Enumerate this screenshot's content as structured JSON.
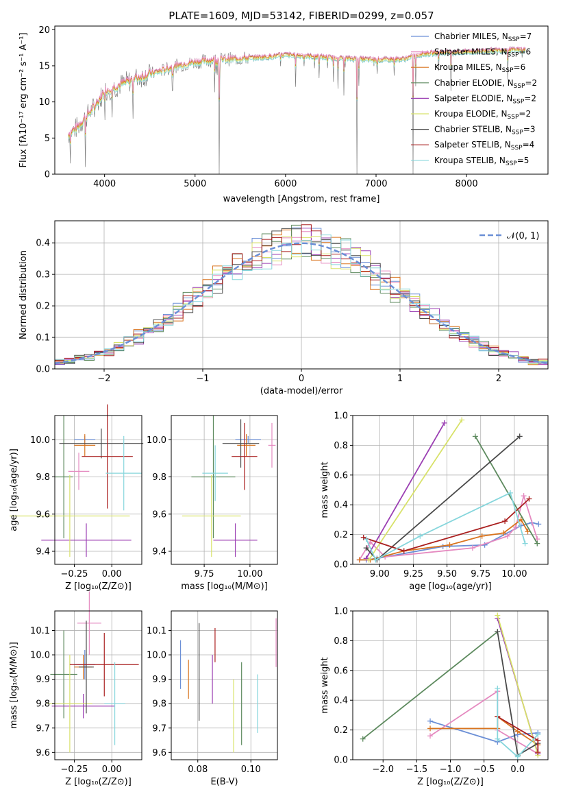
{
  "colors": {
    "c0": "#6b8fd6",
    "c1": "#e58ac0",
    "c2": "#d9741f",
    "c3": "#5d8a5e",
    "c4": "#9b3fb3",
    "c5": "#d8e26a",
    "c6": "#4a4a4a",
    "c7": "#aa1f1f",
    "c8": "#86d6dc",
    "data": "#808080",
    "grid": "#b0b0b0"
  },
  "chart_data": [
    {
      "id": "spectrum",
      "type": "line",
      "title": "PLATE=1609, MJD=53142, FIBERID=0299, z=0.057",
      "xlabel": "wavelength [Angstrom, rest frame]",
      "ylabel": "Flux [fλ10⁻¹⁷ erg cm⁻² s⁻¹ A⁻¹]",
      "xlim": [
        3450,
        8900
      ],
      "ylim": [
        0,
        20.5
      ],
      "xticks": [
        4000,
        5000,
        6000,
        7000,
        8000
      ],
      "yticks": [
        0,
        5,
        10,
        15,
        20
      ],
      "grid": false,
      "legend_position": "right",
      "series": [
        {
          "name": "Chabrier MILES, N_SSP=7"
        },
        {
          "name": "Salpeter MILES, N_SSP=6"
        },
        {
          "name": "Kroupa MILES, N_SSP=6"
        },
        {
          "name": "Chabrier ELODIE, N_SSP=2"
        },
        {
          "name": "Salpeter ELODIE, N_SSP=2"
        },
        {
          "name": "Kroupa ELODIE, N_SSP=2"
        },
        {
          "name": "Chabrier STELIB, N_SSP=3"
        },
        {
          "name": "Salpeter STELIB, N_SSP=4"
        },
        {
          "name": "Kroupa STELIB, N_SSP=5"
        }
      ],
      "legend_labels": [
        {
          "pre": "Chabrier MILES, N",
          "sub": "SSP",
          "post": "=7"
        },
        {
          "pre": "Salpeter MILES, N",
          "sub": "SSP",
          "post": "=6"
        },
        {
          "pre": "Kroupa MILES, N",
          "sub": "SSP",
          "post": "=6"
        },
        {
          "pre": "Chabrier ELODIE, N",
          "sub": "SSP",
          "post": "=2"
        },
        {
          "pre": "Salpeter ELODIE, N",
          "sub": "SSP",
          "post": "=2"
        },
        {
          "pre": "Kroupa ELODIE, N",
          "sub": "SSP",
          "post": "=2"
        },
        {
          "pre": "Chabrier STELIB, N",
          "sub": "SSP",
          "post": "=3"
        },
        {
          "pre": "Salpeter STELIB, N",
          "sub": "SSP",
          "post": "=4"
        },
        {
          "pre": "Kroupa STELIB, N",
          "sub": "SSP",
          "post": "=5"
        }
      ],
      "continuum": {
        "x": [
          3600,
          3700,
          3800,
          3900,
          4000,
          4100,
          4200,
          4400,
          4600,
          4800,
          5000,
          5200,
          5500,
          5800,
          6000,
          6300,
          6500,
          6700,
          7000,
          7300,
          7500,
          7700,
          8000,
          8300,
          8600
        ],
        "y": [
          5.5,
          6.5,
          8.0,
          9.5,
          11.5,
          12.0,
          12.5,
          13.5,
          14.2,
          15.0,
          15.5,
          15.8,
          16.0,
          16.2,
          16.5,
          16.3,
          16.1,
          16.0,
          15.8,
          15.9,
          16.6,
          16.8,
          16.9,
          17.1,
          17.2
        ]
      }
    },
    {
      "id": "residuals",
      "type": "bar",
      "xlabel": "(data-model)/error",
      "ylabel": "Normed distribution",
      "xlim": [
        -2.5,
        2.5
      ],
      "ylim": [
        0,
        0.47
      ],
      "xticks": [
        -2,
        -1,
        0,
        1,
        2
      ],
      "yticks": [
        0.0,
        0.1,
        0.2,
        0.3,
        0.4
      ],
      "grid": true,
      "legend_label": "𝒩(0, 1)",
      "legend_position": "top-right",
      "bin_width": 0.1
    },
    {
      "id": "z-age",
      "type": "scatter",
      "xlabel": "Z [log₁₀(Z/Z⊙)]",
      "ylabel": "age  [log₁₀(age/yr)]",
      "xlim": [
        -0.38,
        0.2
      ],
      "ylim": [
        9.33,
        10.13
      ],
      "xticks": [
        -0.25,
        0.0
      ],
      "yticks": [
        9.4,
        9.6,
        9.8,
        10.0
      ],
      "grid": true,
      "points": [
        {
          "x": -0.18,
          "y": 10.0,
          "xerr": 0.07,
          "yerr": 0.02
        },
        {
          "x": -0.22,
          "y": 9.83,
          "xerr": 0.07,
          "yerr": 0.1
        },
        {
          "x": -0.18,
          "y": 9.97,
          "xerr": 0.07,
          "yerr": 0.06
        },
        {
          "x": -0.32,
          "y": 9.8,
          "xerr": 0.06,
          "yerr": 0.33
        },
        {
          "x": -0.17,
          "y": 9.46,
          "xerr": 0.3,
          "yerr": 0.09
        },
        {
          "x": -0.28,
          "y": 9.59,
          "xerr": 0.4,
          "yerr": 0.22
        },
        {
          "x": -0.07,
          "y": 9.98,
          "xerr": 0.28,
          "yerr": 0.08
        },
        {
          "x": -0.03,
          "y": 9.91,
          "xerr": 0.17,
          "yerr": 0.28
        },
        {
          "x": 0.08,
          "y": 9.82,
          "xerr": 0.12,
          "yerr": 0.2
        }
      ]
    },
    {
      "id": "mass-age",
      "type": "scatter",
      "xlabel": "mass [log₁₀(M/M⊙)]",
      "ylabel": "",
      "xlim": [
        9.57,
        10.15
      ],
      "ylim": [
        9.33,
        10.13
      ],
      "xticks": [
        9.75,
        10.0
      ],
      "yticks": [
        9.4,
        9.6,
        9.8,
        10.0
      ],
      "grid": true,
      "points": [
        {
          "x": 9.99,
          "y": 10.0,
          "xerr": 0.07,
          "yerr": 0.02
        },
        {
          "x": 10.12,
          "y": 9.97,
          "xerr": 0.02,
          "yerr": 0.12
        },
        {
          "x": 9.98,
          "y": 9.97,
          "xerr": 0.05,
          "yerr": 0.06
        },
        {
          "x": 9.8,
          "y": 9.8,
          "xerr": 0.12,
          "yerr": 0.33
        },
        {
          "x": 9.92,
          "y": 9.46,
          "xerr": 0.12,
          "yerr": 0.09
        },
        {
          "x": 9.79,
          "y": 9.59,
          "xerr": 0.16,
          "yerr": 0.22
        },
        {
          "x": 9.95,
          "y": 9.98,
          "xerr": 0.1,
          "yerr": 0.13
        },
        {
          "x": 9.97,
          "y": 9.91,
          "xerr": 0.07,
          "yerr": 0.18
        },
        {
          "x": 9.81,
          "y": 9.82,
          "xerr": 0.07,
          "yerr": 0.15
        }
      ]
    },
    {
      "id": "age-weight",
      "type": "line",
      "xlabel": "age  [log₁₀(age/yr)]",
      "ylabel": "mass weight",
      "xlim": [
        8.8,
        10.25
      ],
      "ylim": [
        0,
        1
      ],
      "xticks": [
        9.0,
        9.25,
        9.5,
        9.75,
        10.0
      ],
      "yticks": [
        0.0,
        0.2,
        0.4,
        0.6,
        0.8,
        1.0
      ],
      "grid": true,
      "series": [
        {
          "x": [
            8.85,
            8.9,
            8.98,
            9.47,
            9.78,
            10.05,
            10.13,
            10.18
          ],
          "y": [
            0.03,
            0.03,
            0.04,
            0.12,
            0.13,
            0.26,
            0.28,
            0.27
          ]
        },
        {
          "x": [
            8.85,
            8.93,
            9.04,
            9.69,
            9.95,
            10.01,
            10.07,
            10.17
          ],
          "y": [
            0.03,
            0.15,
            0.05,
            0.11,
            0.19,
            0.25,
            0.46,
            0.17
          ]
        },
        {
          "x": [
            8.85,
            8.93,
            9.18,
            9.52,
            9.76,
            9.92,
            10.05,
            10.1
          ],
          "y": [
            0.03,
            0.03,
            0.09,
            0.13,
            0.19,
            0.21,
            0.3,
            0.22
          ]
        },
        {
          "x": [
            9.71,
            10.17
          ],
          "y": [
            0.86,
            0.14
          ]
        },
        {
          "x": [
            8.9,
            9.48
          ],
          "y": [
            0.04,
            0.95
          ]
        },
        {
          "x": [
            8.92,
            9.61
          ],
          "y": [
            0.03,
            0.97
          ]
        },
        {
          "x": [
            8.9,
            8.98,
            10.04
          ],
          "y": [
            0.11,
            0.03,
            0.86
          ]
        },
        {
          "x": [
            8.88,
            9.18,
            9.93,
            10.11
          ],
          "y": [
            0.18,
            0.09,
            0.29,
            0.44
          ]
        },
        {
          "x": [
            8.9,
            8.97,
            9.3,
            9.97,
            10.08
          ],
          "y": [
            0.17,
            0.03,
            0.19,
            0.48,
            0.14
          ]
        }
      ]
    },
    {
      "id": "z-mass",
      "type": "scatter",
      "xlabel": "Z [log₁₀(Z/Z⊙)]",
      "ylabel": "mass [log₁₀(M/M⊙)]",
      "xlim": [
        -0.38,
        0.2
      ],
      "ylim": [
        9.57,
        10.18
      ],
      "xticks": [
        -0.25,
        0.0
      ],
      "yticks": [
        9.6,
        9.7,
        9.8,
        9.9,
        10.0,
        10.1
      ],
      "grid": true,
      "points": [
        {
          "x": -0.18,
          "y": 9.96,
          "xerr": 0.07,
          "yerr": 0.06
        },
        {
          "x": -0.15,
          "y": 10.13,
          "xerr": 0.08,
          "yerr": 0.13
        },
        {
          "x": -0.19,
          "y": 9.95,
          "xerr": 0.06,
          "yerr": 0.05
        },
        {
          "x": -0.32,
          "y": 9.92,
          "xerr": 0.09,
          "yerr": 0.18
        },
        {
          "x": -0.19,
          "y": 9.79,
          "xerr": 0.21,
          "yerr": 0.05
        },
        {
          "x": -0.28,
          "y": 9.8,
          "xerr": 0.15,
          "yerr": 0.2
        },
        {
          "x": -0.17,
          "y": 9.95,
          "xerr": 0.05,
          "yerr": 0.19
        },
        {
          "x": -0.05,
          "y": 9.96,
          "xerr": 0.23,
          "yerr": 0.13
        },
        {
          "x": 0.02,
          "y": 9.8,
          "xerr": 0.07,
          "yerr": 0.17
        }
      ]
    },
    {
      "id": "ebv-mass",
      "type": "scatter",
      "xlabel": "E(B-V)",
      "ylabel": "",
      "xlim": [
        0.07,
        0.11
      ],
      "ylim": [
        9.57,
        10.18
      ],
      "xticks": [
        0.08,
        0.1
      ],
      "yticks": [
        9.6,
        9.7,
        9.8,
        9.9,
        10.0,
        10.1
      ],
      "grid": true,
      "points": [
        {
          "x": 0.0735,
          "y": 9.96,
          "yerr": 0.1
        },
        {
          "x": 0.1095,
          "y": 10.05,
          "yerr": 0.1
        },
        {
          "x": 0.0765,
          "y": 9.9,
          "yerr": 0.08
        },
        {
          "x": 0.0965,
          "y": 9.8,
          "yerr": 0.17
        },
        {
          "x": 0.0855,
          "y": 9.9,
          "yerr": 0.1
        },
        {
          "x": 0.0935,
          "y": 9.75,
          "yerr": 0.15
        },
        {
          "x": 0.0805,
          "y": 9.93,
          "yerr": 0.2
        },
        {
          "x": 0.0865,
          "y": 10.04,
          "yerr": 0.07
        },
        {
          "x": 0.1025,
          "y": 9.8,
          "yerr": 0.12
        }
      ]
    },
    {
      "id": "z-weight",
      "type": "line",
      "xlabel": "Z [log₁₀(Z/Z⊙)]",
      "ylabel": "mass weight",
      "xlim": [
        -2.45,
        0.45
      ],
      "ylim": [
        0,
        1
      ],
      "xticks": [
        -2.0,
        -1.5,
        -1.0,
        -0.5,
        0.0
      ],
      "yticks": [
        0.0,
        0.2,
        0.4,
        0.6,
        0.8,
        1.0
      ],
      "grid": true,
      "series": [
        {
          "x": [
            -1.3,
            -0.3,
            0.0,
            0.3
          ],
          "y": [
            0.26,
            0.12,
            0.17,
            0.18
          ]
        },
        {
          "x": [
            -1.3,
            -0.3,
            -0.3,
            0.3
          ],
          "y": [
            0.16,
            0.46,
            0.2,
            0.04
          ]
        },
        {
          "x": [
            -1.3,
            -0.3,
            -0.3,
            0.0,
            0.3
          ],
          "y": [
            0.21,
            0.21,
            0.29,
            0.19,
            0.1
          ]
        },
        {
          "x": [
            -2.3,
            -0.3
          ],
          "y": [
            0.14,
            0.86
          ]
        },
        {
          "x": [
            -0.3,
            0.3
          ],
          "y": [
            0.95,
            0.04
          ]
        },
        {
          "x": [
            -0.3,
            0.3
          ],
          "y": [
            0.97,
            0.03
          ]
        },
        {
          "x": [
            -0.3,
            0.0,
            0.3
          ],
          "y": [
            0.86,
            0.03,
            0.11
          ]
        },
        {
          "x": [
            -0.3,
            0.3,
            0.3
          ],
          "y": [
            0.29,
            0.13,
            0.05
          ]
        },
        {
          "x": [
            -0.3,
            -0.3,
            0.0,
            0.3
          ],
          "y": [
            0.48,
            0.14,
            0.02,
            0.17
          ]
        }
      ]
    }
  ]
}
